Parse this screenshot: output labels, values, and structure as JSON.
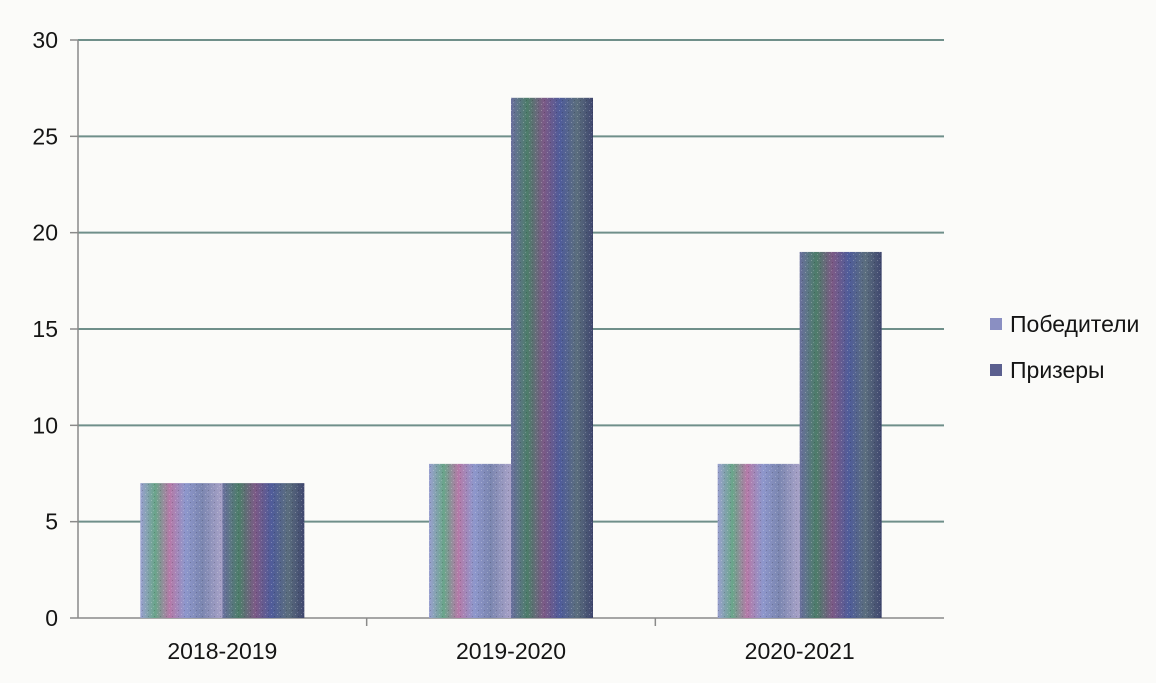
{
  "chart_data": {
    "type": "bar",
    "categories": [
      "2018-2019",
      "2019-2020",
      "2020-2021"
    ],
    "series": [
      {
        "name": "Победители",
        "values": [
          7,
          8,
          8
        ]
      },
      {
        "name": "Призеры",
        "values": [
          7,
          27,
          19
        ]
      }
    ],
    "ylim": [
      0,
      30
    ],
    "yticks": [
      0,
      5,
      10,
      15,
      20,
      25,
      30
    ],
    "grid": true,
    "legend": "right",
    "colors": {
      "Победители": "#8a8fc2",
      "Призеры": "#5b5f8f",
      "grid": "#6f8f8a",
      "axis": "#8a8a8a"
    }
  }
}
